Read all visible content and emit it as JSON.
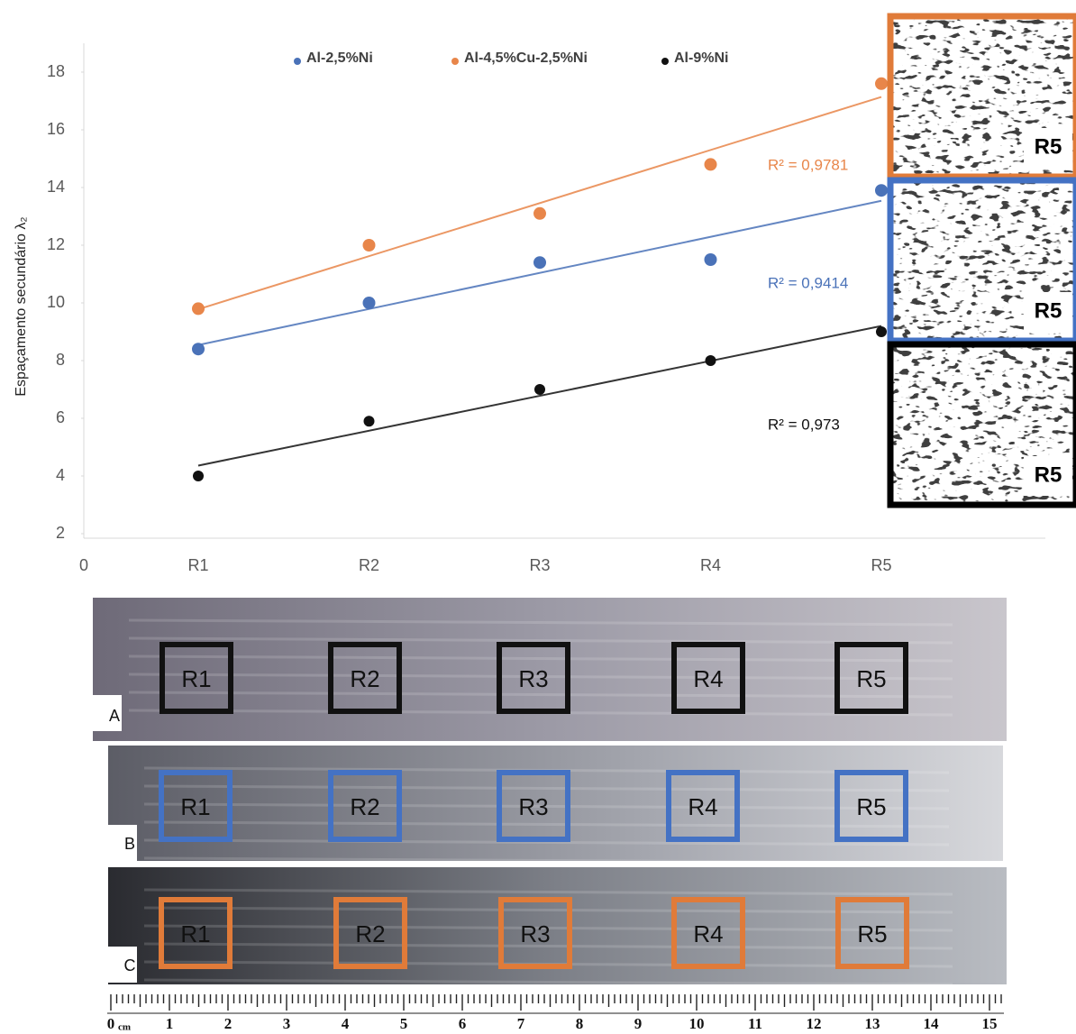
{
  "chart_data": {
    "type": "scatter",
    "y_label": "Espaçamento secundário λ₂",
    "x_origin_label": "0",
    "categories": [
      "R1",
      "R2",
      "R3",
      "R4",
      "R5"
    ],
    "ylim": [
      2,
      19
    ],
    "yticks": [
      2,
      4,
      6,
      8,
      10,
      12,
      14,
      16,
      18
    ],
    "grid": false,
    "trendline": true,
    "series": [
      {
        "name": "Al-2,5%Ni",
        "color": "#4a72b8",
        "values": [
          8.4,
          10.0,
          11.4,
          11.5,
          13.9
        ],
        "r2_label": "R² = 0,9414"
      },
      {
        "name": "Al-4,5%Cu-2,5%Ni",
        "color": "#e8864a",
        "values": [
          9.8,
          12.0,
          13.1,
          14.8,
          17.6
        ],
        "r2_label": "R² = 0,9781"
      },
      {
        "name": "Al-9%Ni",
        "color": "#111111",
        "values": [
          4.0,
          5.9,
          7.0,
          8.0,
          9.0
        ],
        "r2_label": "R² = 0,973"
      }
    ]
  },
  "insets": [
    {
      "label": "R5",
      "color": "#e07b39"
    },
    {
      "label": "R5",
      "color": "#4472c4"
    },
    {
      "label": "R5",
      "color": "#000000"
    }
  ],
  "samples": [
    {
      "label": "A",
      "frame_color": "#111111",
      "regions": [
        "R1",
        "R2",
        "R3",
        "R4",
        "R5"
      ]
    },
    {
      "label": "B",
      "frame_color": "#4472c4",
      "regions": [
        "R1",
        "R2",
        "R3",
        "R4",
        "R5"
      ]
    },
    {
      "label": "C",
      "frame_color": "#e07b39",
      "regions": [
        "R1",
        "R2",
        "R3",
        "R4",
        "R5"
      ]
    }
  ],
  "ruler": {
    "unit": "cm",
    "labels": [
      "0",
      "1",
      "2",
      "3",
      "4",
      "5",
      "6",
      "7",
      "8",
      "9",
      "10",
      "11",
      "12",
      "13",
      "14",
      "15"
    ]
  }
}
